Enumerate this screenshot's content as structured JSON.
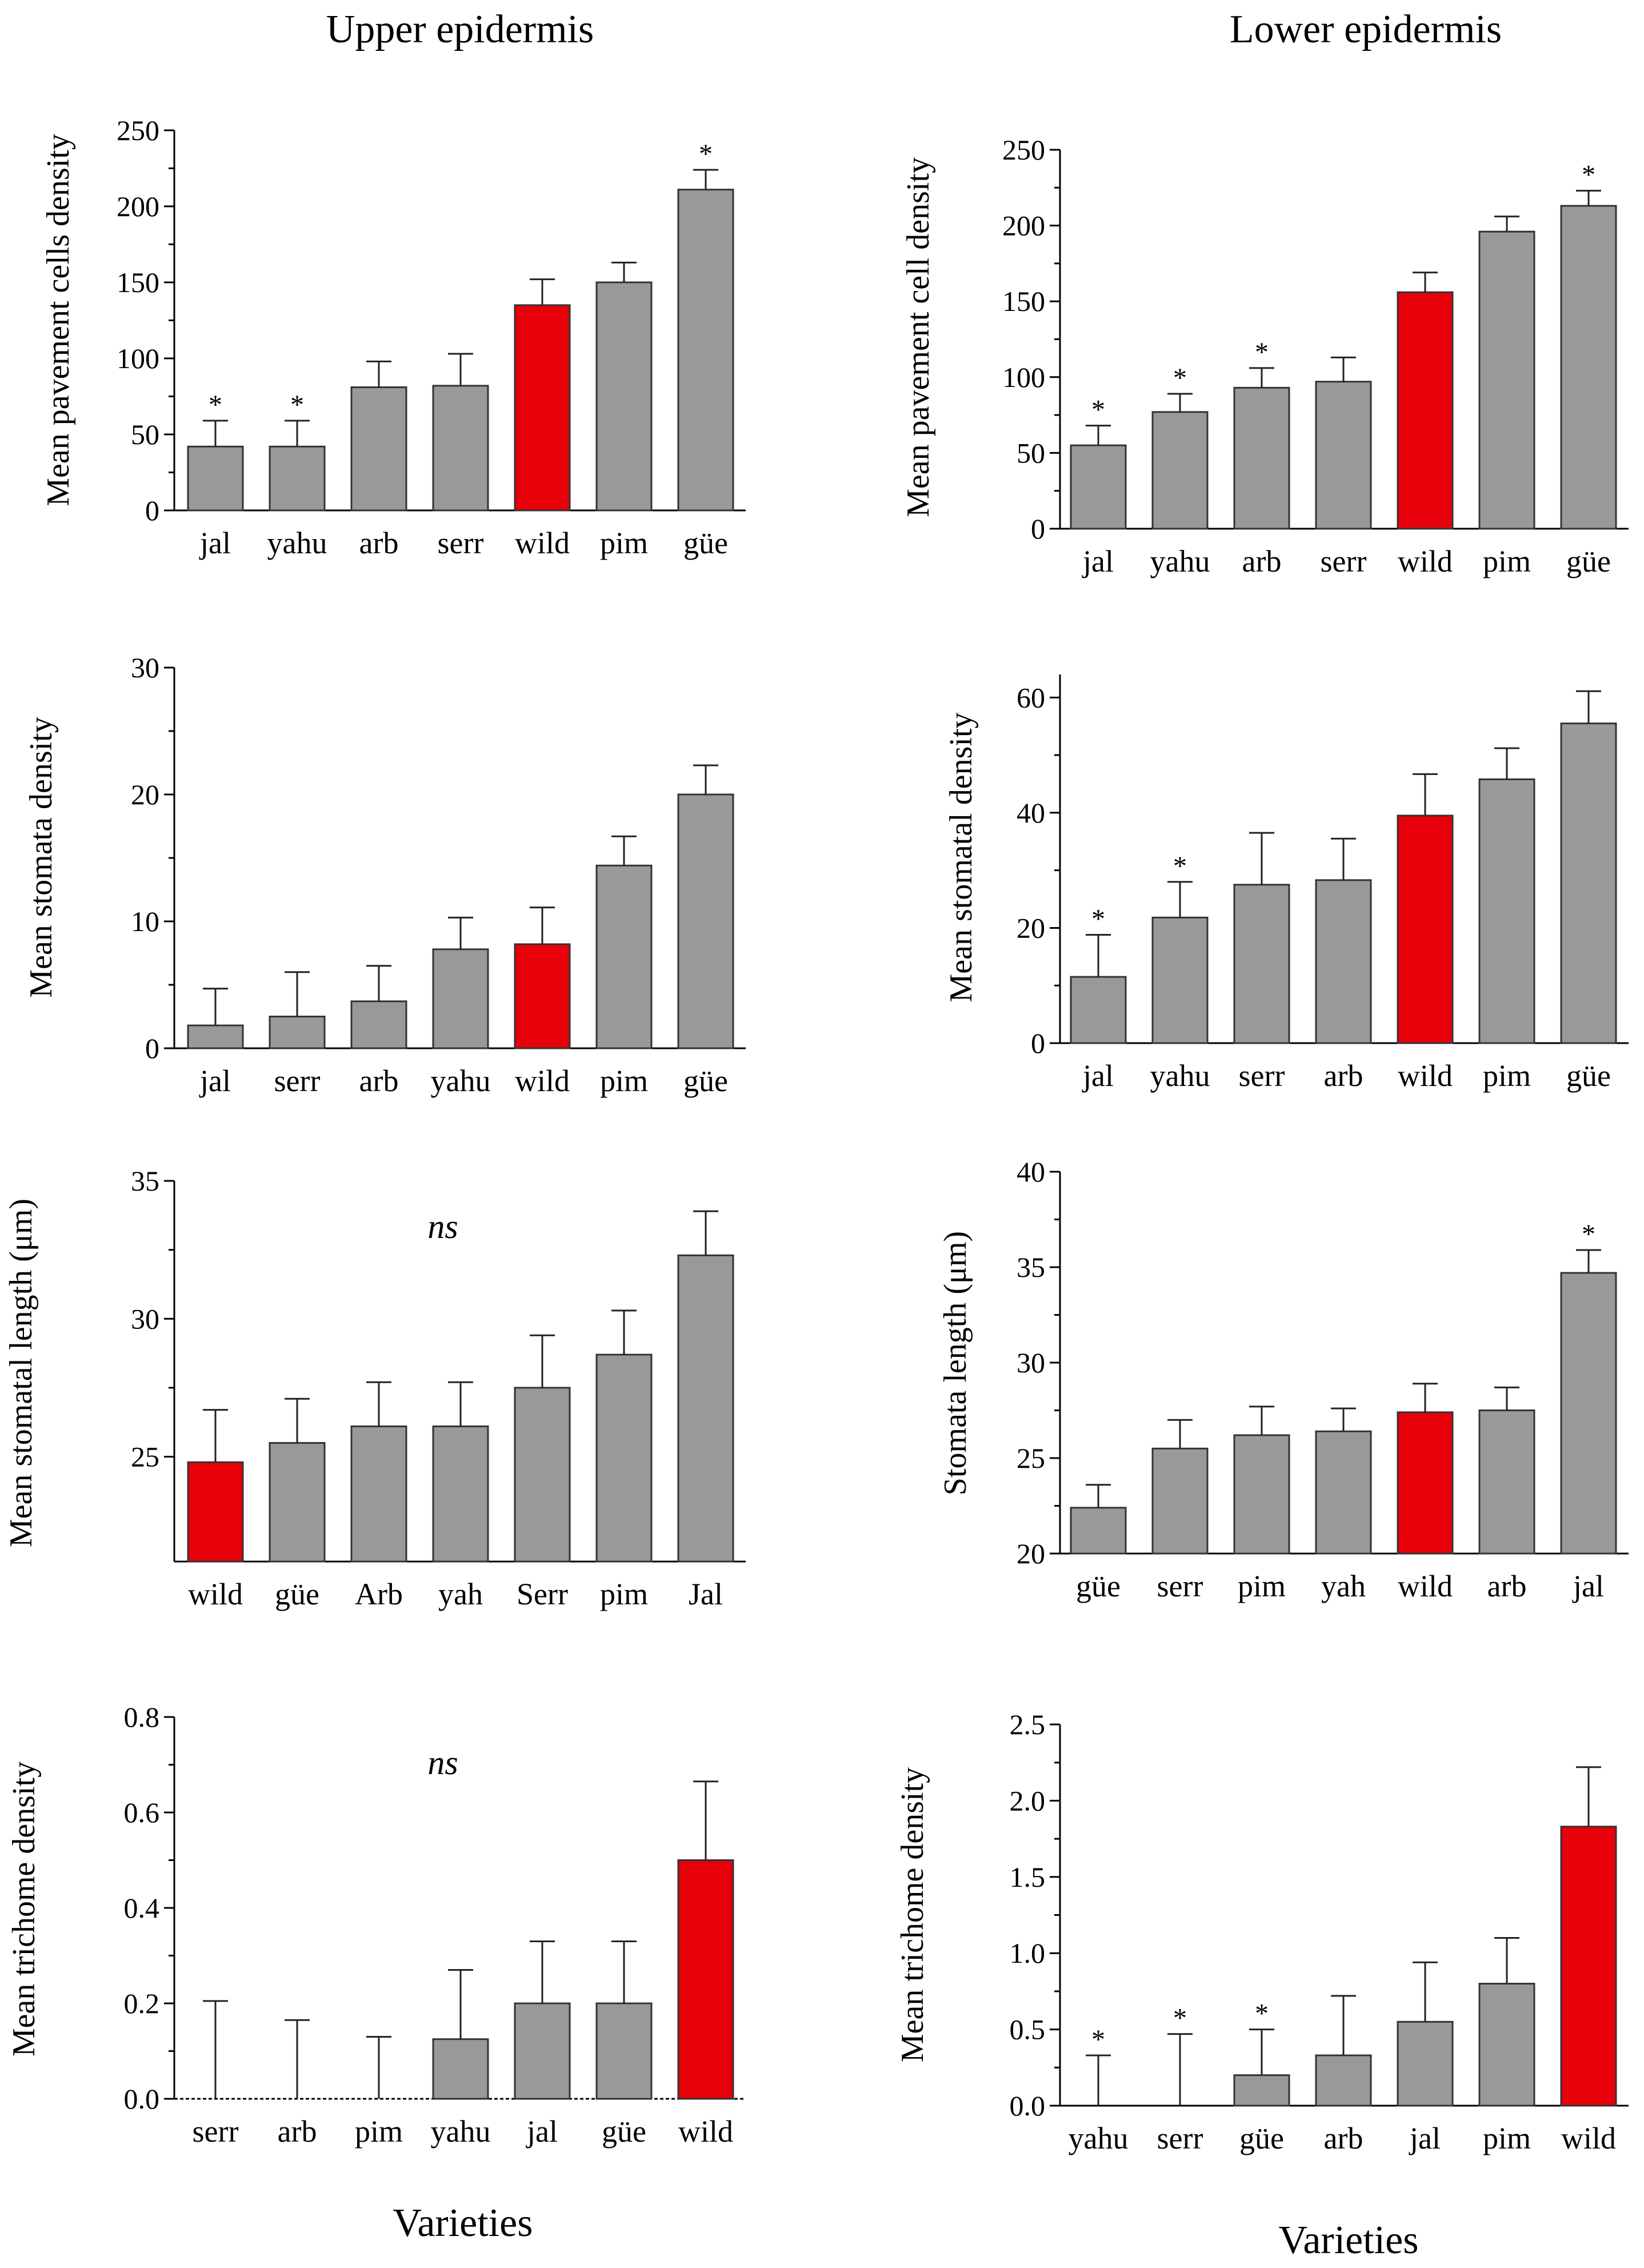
{
  "figure": {
    "titles": {
      "left": "Upper epidermis",
      "right": "Lower epidermis"
    },
    "xlabel_left": "Varieties",
    "xlabel_right": "Varieties",
    "colors": {
      "bar": "#999999",
      "highlight": "#e8000b",
      "edge": "#333333"
    }
  },
  "chart_data": [
    {
      "id": "upper-pavement",
      "type": "bar",
      "title": "",
      "xlabel": "",
      "ylabel": "Mean pavement cells density",
      "ylim": [
        0,
        250
      ],
      "yticks": [
        0,
        50,
        100,
        150,
        200,
        250
      ],
      "ytick_labels": [
        "0",
        "50",
        "100",
        "150",
        "200",
        "250"
      ],
      "categories": [
        "jal",
        "yahu",
        "arb",
        "serr",
        "wild",
        "pim",
        "güe"
      ],
      "values": [
        42,
        42,
        81,
        82,
        135,
        150,
        211
      ],
      "errors": [
        17,
        17,
        17,
        21,
        17,
        13,
        13
      ],
      "significance": [
        "*",
        "*",
        "",
        "",
        "",
        "",
        "*"
      ],
      "highlight": "wild",
      "annotation": ""
    },
    {
      "id": "lower-pavement",
      "type": "bar",
      "title": "",
      "xlabel": "",
      "ylabel": "Mean pavement cell density",
      "ylim": [
        0,
        250
      ],
      "yticks": [
        0,
        50,
        100,
        150,
        200,
        250
      ],
      "ytick_labels": [
        "0",
        "50",
        "100",
        "150",
        "200",
        "250"
      ],
      "categories": [
        "jal",
        "yahu",
        "arb",
        "serr",
        "wild",
        "pim",
        "güe"
      ],
      "values": [
        55,
        77,
        93,
        97,
        156,
        196,
        213
      ],
      "errors": [
        13,
        12,
        13,
        16,
        13,
        10,
        10
      ],
      "significance": [
        "*",
        "*",
        "*",
        "",
        "",
        "",
        "*"
      ],
      "highlight": "wild",
      "annotation": ""
    },
    {
      "id": "upper-stomata",
      "type": "bar",
      "title": "",
      "xlabel": "",
      "ylabel": "Mean stomata density",
      "ylim": [
        0,
        30
      ],
      "yticks": [
        0,
        10,
        20,
        30
      ],
      "ytick_labels": [
        "0",
        "10",
        "20",
        "30"
      ],
      "categories": [
        "jal",
        "serr",
        "arb",
        "yahu",
        "wild",
        "pim",
        "güe"
      ],
      "values": [
        1.8,
        2.5,
        3.7,
        7.8,
        8.2,
        14.4,
        20.0
      ],
      "errors": [
        2.9,
        3.5,
        2.8,
        2.5,
        2.9,
        2.3,
        2.3
      ],
      "significance": [
        "",
        "",
        "",
        "",
        "",
        "",
        ""
      ],
      "highlight": "wild",
      "annotation": ""
    },
    {
      "id": "lower-stomata",
      "type": "bar",
      "title": "",
      "xlabel": "",
      "ylabel": "Mean stomatal density",
      "ylim": [
        0,
        64
      ],
      "yticks": [
        0,
        20,
        40,
        60
      ],
      "ytick_labels": [
        "0",
        "20",
        "40",
        "60"
      ],
      "categories": [
        "jal",
        "yahu",
        "serr",
        "arb",
        "wild",
        "pim",
        "güe"
      ],
      "values": [
        11.5,
        21.8,
        27.5,
        28.3,
        39.5,
        45.8,
        55.5
      ],
      "errors": [
        7.3,
        6.2,
        9.0,
        7.2,
        7.2,
        5.4,
        5.6
      ],
      "significance": [
        "*",
        "*",
        "",
        "",
        "",
        "",
        ""
      ],
      "highlight": "wild",
      "annotation": ""
    },
    {
      "id": "upper-length",
      "type": "bar",
      "title": "",
      "xlabel": "",
      "ylabel": "Mean stomatal length (μm)",
      "ylim": [
        21.2,
        35
      ],
      "yticks": [
        25,
        30,
        35
      ],
      "ytick_labels": [
        "25",
        "30",
        "35"
      ],
      "categories": [
        "wild",
        "güe",
        "Arb",
        "yah",
        "Serr",
        "pim",
        "Jal"
      ],
      "values": [
        24.8,
        25.5,
        26.1,
        26.1,
        27.5,
        28.7,
        32.3
      ],
      "errors": [
        1.9,
        1.6,
        1.6,
        1.6,
        1.9,
        1.6,
        1.6
      ],
      "significance": [
        "",
        "",
        "",
        "",
        "",
        "",
        ""
      ],
      "highlight": "wild",
      "annotation": "ns"
    },
    {
      "id": "lower-length",
      "type": "bar",
      "title": "",
      "xlabel": "",
      "ylabel": "Stomata length (μm)",
      "ylim": [
        20,
        40
      ],
      "yticks": [
        20,
        25,
        30,
        35,
        40
      ],
      "ytick_labels": [
        "20",
        "25",
        "30",
        "35",
        "40"
      ],
      "categories": [
        "güe",
        "serr",
        "pim",
        "yah",
        "wild",
        "arb",
        "jal"
      ],
      "values": [
        22.4,
        25.5,
        26.2,
        26.4,
        27.4,
        27.5,
        34.7
      ],
      "errors": [
        1.2,
        1.5,
        1.5,
        1.2,
        1.5,
        1.2,
        1.2
      ],
      "significance": [
        "",
        "",
        "",
        "",
        "",
        "",
        "*"
      ],
      "highlight": "wild",
      "annotation": ""
    },
    {
      "id": "upper-trichome",
      "type": "bar",
      "title": "",
      "xlabel": "",
      "ylabel": "Mean trichome density",
      "ylim": [
        0,
        0.8
      ],
      "yticks": [
        0.0,
        0.2,
        0.4,
        0.6,
        0.8
      ],
      "ytick_labels": [
        "0.0",
        "0.2",
        "0.4",
        "0.6",
        "0.8"
      ],
      "categories": [
        "serr",
        "arb",
        "pim",
        "yahu",
        "jal",
        "güe",
        "wild"
      ],
      "values": [
        0,
        0,
        0,
        0.125,
        0.2,
        0.2,
        0.5
      ],
      "errors": [
        0.205,
        0.165,
        0.13,
        0.145,
        0.13,
        0.13,
        0.165
      ],
      "significance": [
        "",
        "",
        "",
        "",
        "",
        "",
        ""
      ],
      "highlight": "wild",
      "annotation": "ns"
    },
    {
      "id": "lower-trichome",
      "type": "bar",
      "title": "",
      "xlabel": "",
      "ylabel": "Mean trichome density",
      "ylim": [
        0,
        2.5
      ],
      "yticks": [
        0.0,
        0.5,
        1.0,
        1.5,
        2.0,
        2.5
      ],
      "ytick_labels": [
        "0.0",
        "0.5",
        "1.0",
        "1.5",
        "2.0",
        "2.5"
      ],
      "categories": [
        "yahu",
        "serr",
        "güe",
        "arb",
        "jal",
        "pim",
        "wild"
      ],
      "values": [
        0,
        0,
        0.2,
        0.33,
        0.55,
        0.8,
        1.83
      ],
      "errors": [
        0.33,
        0.47,
        0.3,
        0.39,
        0.39,
        0.3,
        0.39
      ],
      "significance": [
        "*",
        "*",
        "*",
        "",
        "",
        "",
        ""
      ],
      "highlight": "wild",
      "annotation": ""
    }
  ]
}
